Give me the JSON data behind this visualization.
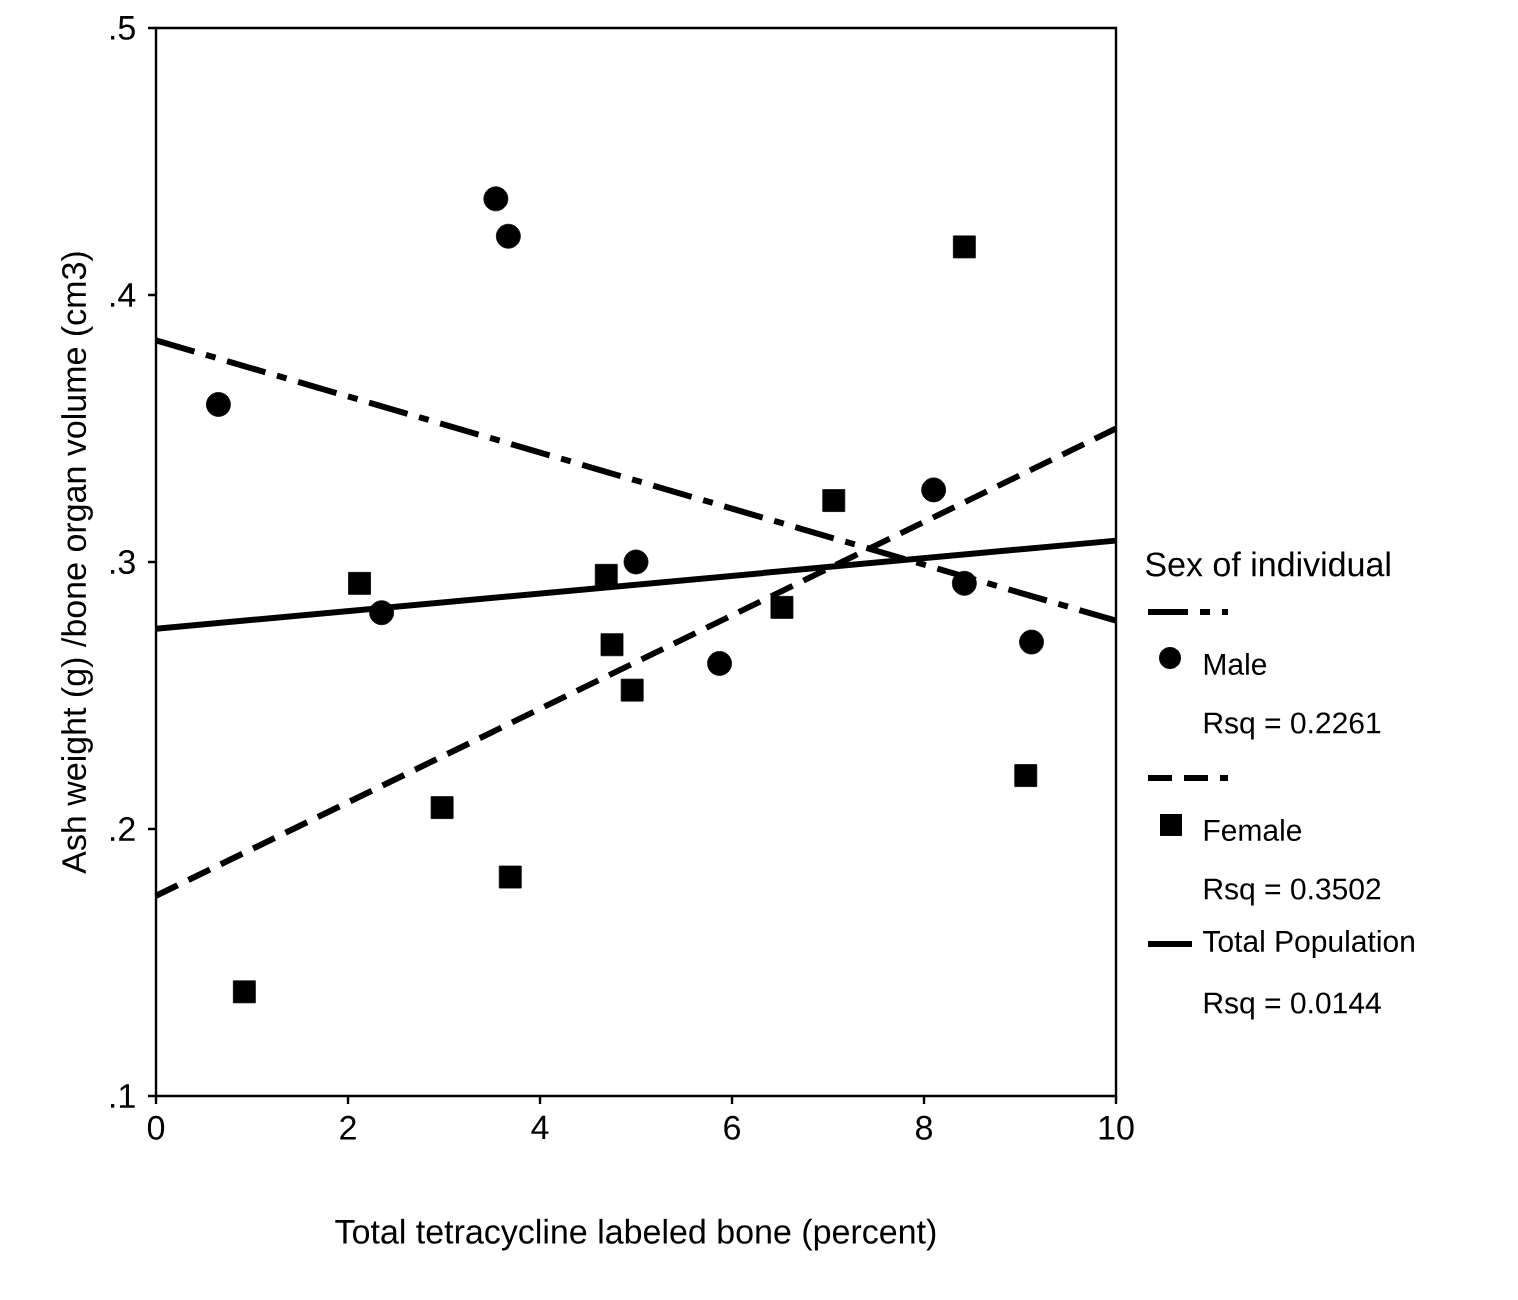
{
  "chart_data": {
    "type": "scatter",
    "xlabel": "Total tetracycline labeled bone (percent)",
    "ylabel": "Ash weight (g) /bone organ volume (cm3)",
    "legend_title": "Sex of individual",
    "legend": "right",
    "grid": false,
    "xlim": [
      0,
      10
    ],
    "ylim": [
      0.1,
      0.5
    ],
    "xticks": [
      0,
      2,
      4,
      6,
      8,
      10
    ],
    "yticks": [
      {
        "value": 0.1,
        "label": ".1"
      },
      {
        "value": 0.2,
        "label": ".2"
      },
      {
        "value": 0.3,
        "label": ".3"
      },
      {
        "value": 0.4,
        "label": ".4"
      },
      {
        "value": 0.5,
        "label": ".5"
      }
    ],
    "series": [
      {
        "type": "line",
        "line_style": "dashdot",
        "color": "#000000",
        "x": [
          0,
          10
        ],
        "values": [
          0.383,
          0.278
        ]
      },
      {
        "name": "Male",
        "marker": "circle",
        "color": "#000000",
        "x": [
          0.65,
          2.35,
          3.54,
          3.67,
          5.0,
          5.87,
          8.1,
          8.42,
          9.12
        ],
        "values": [
          0.359,
          0.281,
          0.436,
          0.422,
          0.3,
          0.262,
          0.327,
          0.292,
          0.27
        ]
      },
      {
        "type": "line",
        "line_style": "dashed",
        "color": "#000000",
        "x": [
          0,
          10
        ],
        "values": [
          0.175,
          0.35
        ]
      },
      {
        "name": "Female",
        "marker": "square",
        "color": "#000000",
        "x": [
          0.92,
          2.12,
          2.98,
          3.69,
          4.69,
          4.75,
          4.96,
          6.52,
          7.06,
          8.42,
          9.06
        ],
        "values": [
          0.139,
          0.292,
          0.208,
          0.182,
          0.295,
          0.269,
          0.252,
          0.283,
          0.323,
          0.418,
          0.22
        ]
      },
      {
        "name": "Total Population",
        "type": "line",
        "line_style": "solid",
        "color": "#000000",
        "x": [
          0,
          10
        ],
        "values": [
          0.275,
          0.308
        ]
      }
    ],
    "annotations": [
      "Rsq = 0.2261",
      "Rsq = 0.3502",
      "Rsq = 0.0144"
    ]
  }
}
